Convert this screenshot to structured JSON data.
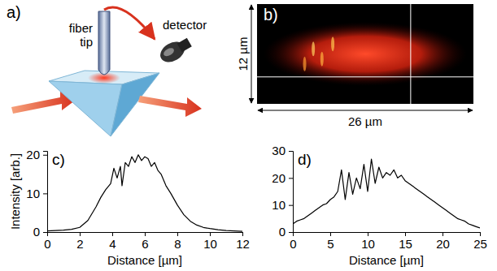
{
  "diagram": {
    "label": "a)",
    "nodes": [
      {
        "label": "fiber tip"
      },
      {
        "label": "detector"
      }
    ]
  },
  "image": {
    "label": "b)",
    "height_label": "12 µm",
    "width_label": "26 µm"
  },
  "chart_data": [
    {
      "type": "line",
      "title": "c)",
      "ylabel": "Intensity [arb.]",
      "xlabel": "Distance [µm]",
      "color": "#000000",
      "x": [
        0,
        0.5,
        1,
        1.5,
        2,
        2.5,
        3,
        3.3,
        3.6,
        3.9,
        4.1,
        4.3,
        4.5,
        4.6,
        4.8,
        5.0,
        5.2,
        5.4,
        5.6,
        5.8,
        6.0,
        6.2,
        6.4,
        6.6,
        6.8,
        7.0,
        7.3,
        7.6,
        8.0,
        8.4,
        8.8,
        9.2,
        9.6,
        10,
        10.5,
        11,
        11.5,
        12
      ],
      "values": [
        0.3,
        0.4,
        0.5,
        0.7,
        1.2,
        3,
        6.5,
        9,
        11,
        12.5,
        16.5,
        14,
        17,
        12,
        18,
        17,
        19.5,
        18,
        20,
        18.5,
        19.5,
        19,
        17,
        18,
        16,
        15,
        12,
        10,
        7,
        4.5,
        2.8,
        1.8,
        1.2,
        0.9,
        0.6,
        0.4,
        0.3,
        0.2
      ],
      "xlim": [
        0,
        12
      ],
      "xticks": [
        0,
        2,
        4,
        6,
        8,
        10,
        12
      ],
      "ylim": [
        0,
        21
      ],
      "yticks": [
        0,
        10,
        20
      ]
    },
    {
      "type": "line",
      "title": "d)",
      "xlabel": "Distance [µm]",
      "color": "#000000",
      "x": [
        0,
        0.5,
        1,
        1.5,
        2,
        2.5,
        3,
        3.5,
        4,
        4.5,
        5,
        5.5,
        6,
        6.5,
        7,
        7.5,
        8,
        8.5,
        9,
        9.5,
        10,
        10.5,
        11,
        11.5,
        12,
        12.5,
        13,
        13.5,
        14,
        14.5,
        15,
        15.5,
        16,
        16.5,
        17,
        17.5,
        18,
        18.5,
        19,
        19.5,
        20,
        20.5,
        21,
        21.5,
        22,
        22.5,
        23,
        23.5,
        24,
        24.5,
        25
      ],
      "values": [
        3,
        4,
        4.5,
        5,
        6,
        7,
        8,
        9,
        10,
        10.5,
        12,
        13,
        15,
        23,
        12,
        22,
        14,
        20,
        16,
        25,
        15,
        27,
        18,
        24,
        20,
        22,
        21,
        23,
        20,
        21,
        19,
        18,
        17,
        16,
        15,
        14,
        13,
        12,
        11,
        10,
        9,
        8,
        7,
        6,
        5,
        4.5,
        4,
        3,
        2.5,
        2,
        1.5
      ],
      "xlim": [
        0,
        25
      ],
      "xticks": [
        0,
        5,
        10,
        15,
        20,
        25
      ],
      "ylim": [
        0,
        30
      ],
      "yticks": [
        0,
        10,
        20,
        30
      ]
    }
  ]
}
